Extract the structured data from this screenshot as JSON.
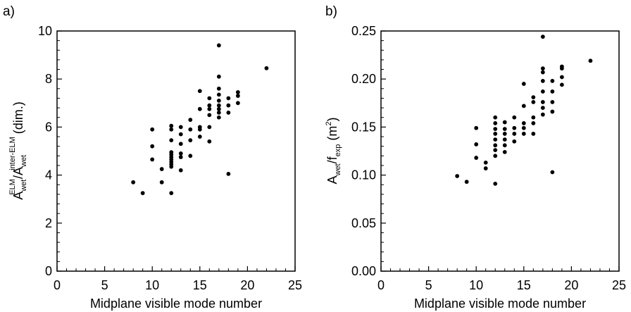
{
  "chart_data": [
    {
      "type": "scatter",
      "panel_label": "a)",
      "xlabel": "Midplane visible mode number",
      "ylabel": {
        "base1": "A",
        "sub1": "wet",
        "sup1": "ELM",
        "slash": "/",
        "base2": "A",
        "sub2": "wet",
        "sup2": "inter-ELM",
        "suffix": "(dim.)"
      },
      "xlim": [
        0,
        25
      ],
      "ylim": [
        0,
        10
      ],
      "x_ticks": [
        "0",
        "5",
        "10",
        "15",
        "20",
        "25"
      ],
      "y_ticks": [
        "0",
        "2",
        "4",
        "6",
        "8",
        "10"
      ],
      "x_tick_values": [
        0,
        5,
        10,
        15,
        20,
        25
      ],
      "y_tick_values": [
        0,
        2,
        4,
        6,
        8,
        10
      ],
      "points": [
        [
          8,
          3.7
        ],
        [
          9,
          3.25
        ],
        [
          10,
          5.9
        ],
        [
          10,
          5.2
        ],
        [
          10,
          4.65
        ],
        [
          11,
          4.25
        ],
        [
          11,
          3.7
        ],
        [
          12,
          6.05
        ],
        [
          12,
          5.9
        ],
        [
          12,
          5.45
        ],
        [
          12,
          4.95
        ],
        [
          12,
          4.85
        ],
        [
          12,
          4.75
        ],
        [
          12,
          4.65
        ],
        [
          12,
          4.55
        ],
        [
          12,
          4.45
        ],
        [
          12,
          4.35
        ],
        [
          12,
          3.25
        ],
        [
          13,
          6.0
        ],
        [
          13,
          5.7
        ],
        [
          13,
          5.3
        ],
        [
          13,
          4.9
        ],
        [
          13,
          4.75
        ],
        [
          13,
          4.2
        ],
        [
          14,
          6.3
        ],
        [
          14,
          5.9
        ],
        [
          14,
          5.45
        ],
        [
          14,
          4.8
        ],
        [
          15,
          7.5
        ],
        [
          15,
          6.75
        ],
        [
          15,
          6.0
        ],
        [
          15,
          5.9
        ],
        [
          15,
          5.6
        ],
        [
          16,
          7.2
        ],
        [
          16,
          6.9
        ],
        [
          16,
          6.75
        ],
        [
          16,
          6.5
        ],
        [
          16,
          6.0
        ],
        [
          16,
          5.4
        ],
        [
          17,
          9.4
        ],
        [
          17,
          8.1
        ],
        [
          17,
          7.6
        ],
        [
          17,
          7.35
        ],
        [
          17,
          7.1
        ],
        [
          17,
          6.9
        ],
        [
          17,
          6.75
        ],
        [
          17,
          6.6
        ],
        [
          17,
          6.4
        ],
        [
          18,
          7.2
        ],
        [
          18,
          6.9
        ],
        [
          18,
          6.6
        ],
        [
          18,
          4.05
        ],
        [
          19,
          7.45
        ],
        [
          19,
          7.3
        ],
        [
          19,
          7.0
        ],
        [
          22,
          8.45
        ]
      ]
    },
    {
      "type": "scatter",
      "panel_label": "b)",
      "xlabel": "Midplane visible mode number",
      "ylabel": {
        "base1": "A",
        "sub1": "wet",
        "slash": "/f",
        "sub2": "exp",
        "unit_open": " (m",
        "unit_sup": "2",
        "unit_close": ")"
      },
      "xlim": [
        0,
        25
      ],
      "ylim": [
        0,
        0.25
      ],
      "x_ticks": [
        "0",
        "5",
        "10",
        "15",
        "20",
        "25"
      ],
      "y_ticks": [
        "0.00",
        "0.05",
        "0.10",
        "0.15",
        "0.20",
        "0.25"
      ],
      "x_tick_values": [
        0,
        5,
        10,
        15,
        20,
        25
      ],
      "y_tick_values": [
        0,
        0.05,
        0.1,
        0.15,
        0.2,
        0.25
      ],
      "points": [
        [
          8,
          0.099
        ],
        [
          9,
          0.093
        ],
        [
          10,
          0.149
        ],
        [
          10,
          0.132
        ],
        [
          10,
          0.118
        ],
        [
          11,
          0.113
        ],
        [
          11,
          0.107
        ],
        [
          12,
          0.16
        ],
        [
          12,
          0.154
        ],
        [
          12,
          0.148
        ],
        [
          12,
          0.143
        ],
        [
          12,
          0.137
        ],
        [
          12,
          0.131
        ],
        [
          12,
          0.126
        ],
        [
          12,
          0.12
        ],
        [
          12,
          0.091
        ],
        [
          13,
          0.155
        ],
        [
          13,
          0.148
        ],
        [
          13,
          0.143
        ],
        [
          13,
          0.137
        ],
        [
          13,
          0.131
        ],
        [
          13,
          0.124
        ],
        [
          14,
          0.16
        ],
        [
          14,
          0.149
        ],
        [
          14,
          0.143
        ],
        [
          14,
          0.135
        ],
        [
          15,
          0.195
        ],
        [
          15,
          0.172
        ],
        [
          15,
          0.154
        ],
        [
          15,
          0.149
        ],
        [
          15,
          0.143
        ],
        [
          16,
          0.181
        ],
        [
          16,
          0.176
        ],
        [
          16,
          0.16
        ],
        [
          16,
          0.154
        ],
        [
          16,
          0.143
        ],
        [
          17,
          0.244
        ],
        [
          17,
          0.211
        ],
        [
          17,
          0.207
        ],
        [
          17,
          0.198
        ],
        [
          17,
          0.187
        ],
        [
          17,
          0.176
        ],
        [
          17,
          0.17
        ],
        [
          17,
          0.163
        ],
        [
          18,
          0.198
        ],
        [
          18,
          0.187
        ],
        [
          18,
          0.176
        ],
        [
          18,
          0.166
        ],
        [
          18,
          0.103
        ],
        [
          19,
          0.213
        ],
        [
          19,
          0.211
        ],
        [
          19,
          0.202
        ],
        [
          19,
          0.194
        ],
        [
          22,
          0.219
        ]
      ]
    }
  ]
}
